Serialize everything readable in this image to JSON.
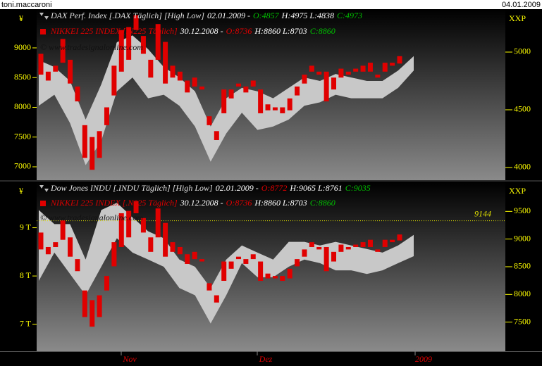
{
  "header": {
    "user": "toni.maccaroni",
    "date": "04.01.2009"
  },
  "nikkei": {
    "color": "#e00000",
    "candles": [
      [
        8900,
        8550
      ],
      [
        8600,
        8450
      ],
      [
        8700,
        8600
      ],
      [
        9150,
        8750
      ],
      [
        8800,
        8400
      ],
      [
        8350,
        8100
      ],
      [
        7700,
        7150
      ],
      [
        7500,
        6950
      ],
      [
        7600,
        7150
      ],
      [
        8000,
        7700
      ],
      [
        8700,
        8200
      ],
      [
        9300,
        8600
      ],
      [
        9350,
        8800
      ],
      [
        9550,
        9300
      ],
      [
        9200,
        8900
      ],
      [
        8800,
        8500
      ],
      [
        9400,
        8800
      ],
      [
        9100,
        8400
      ],
      [
        8700,
        8500
      ],
      [
        8600,
        8450
      ],
      [
        8450,
        8250
      ],
      [
        8500,
        8350
      ],
      [
        8350,
        8300
      ],
      [
        7850,
        7700
      ],
      [
        7600,
        7450
      ],
      [
        8300,
        7900
      ],
      [
        8300,
        8150
      ],
      [
        8400,
        8350
      ],
      [
        8350,
        8250
      ],
      [
        8450,
        8350
      ],
      [
        8300,
        7900
      ],
      [
        8050,
        7950
      ],
      [
        8000,
        7950
      ],
      [
        8000,
        7900
      ],
      [
        8150,
        7950
      ],
      [
        8350,
        8200
      ],
      [
        8550,
        8400
      ],
      [
        8700,
        8600
      ],
      [
        8600,
        8550
      ],
      [
        8600,
        8100
      ],
      [
        8500,
        8300
      ],
      [
        8650,
        8500
      ],
      [
        8600,
        8550
      ],
      [
        8650,
        8600
      ],
      [
        8700,
        8600
      ],
      [
        8750,
        8600
      ],
      [
        8550,
        8500
      ],
      [
        8750,
        8600
      ],
      [
        8750,
        8700
      ],
      [
        8736,
        8860
      ]
    ]
  },
  "panels": [
    {
      "currency": "¥",
      "unit": "XXP",
      "left_lim": [
        6775,
        9651
      ],
      "left_ticks": [
        9000,
        8500,
        8000,
        7500,
        7000
      ],
      "right_lim": [
        3890,
        5372
      ],
      "right_ticks": [
        5000,
        4500,
        4000
      ],
      "band_color": "#c8c8c8",
      "band_high": [
        4930,
        4870,
        4750,
        4415,
        4720,
        5085,
        5145,
        5025,
        4870,
        4780,
        4660,
        4355,
        4600,
        4690,
        4660,
        4600,
        4690,
        4780,
        4750,
        4810,
        4780,
        4750,
        4750,
        4840,
        4965
      ],
      "band_low": [
        4535,
        4630,
        4385,
        4020,
        4230,
        4660,
        4780,
        4600,
        4630,
        4535,
        4355,
        4050,
        4295,
        4475,
        4325,
        4355,
        4415,
        4535,
        4565,
        4630,
        4600,
        4600,
        4600,
        4690,
        4840
      ],
      "legend": [
        {
          "parts": [
            "DAX Perf. Index [.DAX  Täglich] [High Low]",
            "02.01.2009 -",
            "O:4857",
            "H:4975 L:4838",
            "C:4973"
          ],
          "colors": [
            "#e0e0e0",
            "#ffffff",
            "#00c000",
            "#ffffff",
            "#00c000"
          ]
        },
        {
          "parts": [
            "NIKKEI 225 INDEX [.N225 Täglich]",
            "30.12.2008 -",
            "O:8736",
            "H:8860 L:8703",
            "C:8860"
          ],
          "colors": [
            "#e00000",
            "#ffffff",
            "#e00000",
            "#ffffff",
            "#00c000"
          ]
        }
      ],
      "watermark": "© www.tradesignalonline.com"
    },
    {
      "currency": "¥",
      "unit": "XXP",
      "left_lim": [
        6441,
        9956
      ],
      "left_ticks": [
        {
          "value": 9000,
          "label": "9 T"
        },
        {
          "value": 8000,
          "label": "8 T"
        },
        {
          "value": 7000,
          "label": "7 T"
        }
      ],
      "right_lim": [
        6974,
        10038
      ],
      "right_ticks": [
        9500,
        9000,
        8500,
        8000,
        7500
      ],
      "band_color": "#c8c8c8",
      "band_high": [
        9525,
        9270,
        9270,
        8630,
        9525,
        9655,
        9395,
        9140,
        9015,
        8630,
        8500,
        8115,
        8630,
        8885,
        8755,
        8630,
        8950,
        8950,
        8885,
        8950,
        8885,
        8820,
        8755,
        8885,
        9075
      ],
      "band_low": [
        8245,
        8755,
        8370,
        7985,
        8500,
        9015,
        8755,
        8630,
        8500,
        8115,
        7985,
        7475,
        7985,
        8565,
        8310,
        8310,
        8500,
        8630,
        8565,
        8435,
        8435,
        8370,
        8435,
        8565,
        8690
      ],
      "reference": {
        "value": 9144,
        "label": "9144",
        "color": "#e0e000"
      },
      "legend": [
        {
          "parts": [
            "Dow Jones INDU [.INDU  Täglich] [High Low]",
            "02.01.2009 -",
            "O:8772",
            "H:9065 L:8761",
            "C:9035"
          ],
          "colors": [
            "#e0e0e0",
            "#ffffff",
            "#e00000",
            "#ffffff",
            "#00c000"
          ]
        },
        {
          "parts": [
            "NIKKEI 225 INDEX [.N225 Täglich]",
            "30.12.2008 -",
            "O:8736",
            "H:8860 L:8703",
            "C:8860"
          ],
          "colors": [
            "#e00000",
            "#ffffff",
            "#e00000",
            "#ffffff",
            "#00c000"
          ]
        }
      ],
      "watermark": "© www.tradesignalonline.com"
    }
  ],
  "time_axis": [
    "Nov",
    "Dez",
    "2009"
  ]
}
